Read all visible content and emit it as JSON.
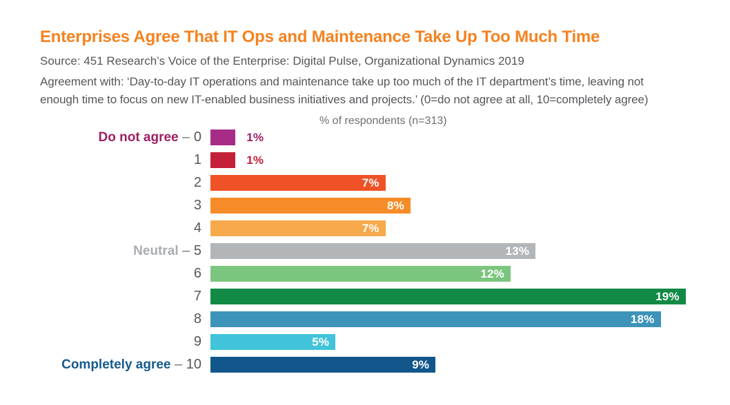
{
  "header": {
    "title": "Enterprises Agree That IT Ops and Maintenance Take Up Too Much Time",
    "source": "Source: 451 Research’s Voice of the Enterprise: Digital Pulse, Organizational Dynamics 2019",
    "description_lines": [
      "Agreement with: ‘Day-to-day IT operations and maintenance take up too much of the IT department’s time, leaving not",
      "enough time to focus on new IT-enabled business initiatives and projects.’ (0=do not agree at all, 10=completely agree)"
    ]
  },
  "colors": {
    "title_orange": "#F5821F",
    "body_gray": "#55565A",
    "subtitle_gray": "#6D6E71",
    "dash_gray": "#77787B"
  },
  "chart_data": {
    "type": "bar",
    "orientation": "horizontal",
    "title": "% of respondents (n=313)",
    "xlabel": "",
    "ylabel": "",
    "categories": [
      "0",
      "1",
      "2",
      "3",
      "4",
      "5",
      "6",
      "7",
      "8",
      "9",
      "10"
    ],
    "values": [
      1,
      1,
      7,
      8,
      7,
      13,
      12,
      19,
      18,
      5,
      9
    ],
    "unit": "%",
    "xlim": [
      0,
      19.2
    ],
    "grid": false,
    "legend": false,
    "anchor_labels": {
      "0": "Do not agree",
      "5": "Neutral",
      "10": "Completely agree"
    },
    "rows": [
      {
        "tick": "0",
        "prefix": "Do not agree",
        "prefix_color": "#9D1F63",
        "value": 1,
        "label": "1%",
        "color": "#A62C87",
        "label_inside": false,
        "label_color": "#9D1F63"
      },
      {
        "tick": "1",
        "prefix": "",
        "prefix_color": "",
        "value": 1,
        "label": "1%",
        "color": "#C52039",
        "label_inside": false,
        "label_color": "#C52039"
      },
      {
        "tick": "2",
        "prefix": "",
        "prefix_color": "",
        "value": 7,
        "label": "7%",
        "color": "#EF5226",
        "label_inside": true,
        "label_color": "#ffffff"
      },
      {
        "tick": "3",
        "prefix": "",
        "prefix_color": "",
        "value": 8,
        "label": "8%",
        "color": "#F68C28",
        "label_inside": true,
        "label_color": "#ffffff"
      },
      {
        "tick": "4",
        "prefix": "",
        "prefix_color": "",
        "value": 7,
        "label": "7%",
        "color": "#F7A94B",
        "label_inside": true,
        "label_color": "#ffffff"
      },
      {
        "tick": "5",
        "prefix": "Neutral",
        "prefix_color": "#A9ADB2",
        "value": 13,
        "label": "13%",
        "color": "#B3B6B9",
        "label_inside": true,
        "label_color": "#ffffff"
      },
      {
        "tick": "6",
        "prefix": "",
        "prefix_color": "",
        "value": 12,
        "label": "12%",
        "color": "#7CC57E",
        "label_inside": true,
        "label_color": "#ffffff"
      },
      {
        "tick": "7",
        "prefix": "",
        "prefix_color": "",
        "value": 19,
        "label": "19%",
        "color": "#128945",
        "label_inside": true,
        "label_color": "#ffffff"
      },
      {
        "tick": "8",
        "prefix": "",
        "prefix_color": "",
        "value": 18,
        "label": "18%",
        "color": "#3D93BA",
        "label_inside": true,
        "label_color": "#ffffff"
      },
      {
        "tick": "9",
        "prefix": "",
        "prefix_color": "",
        "value": 5,
        "label": "5%",
        "color": "#41C3DB",
        "label_inside": true,
        "label_color": "#ffffff"
      },
      {
        "tick": "10",
        "prefix": "Completely agree",
        "prefix_color": "#175A8E",
        "value": 9,
        "label": "9%",
        "color": "#12578B",
        "label_inside": true,
        "label_color": "#ffffff"
      }
    ]
  }
}
